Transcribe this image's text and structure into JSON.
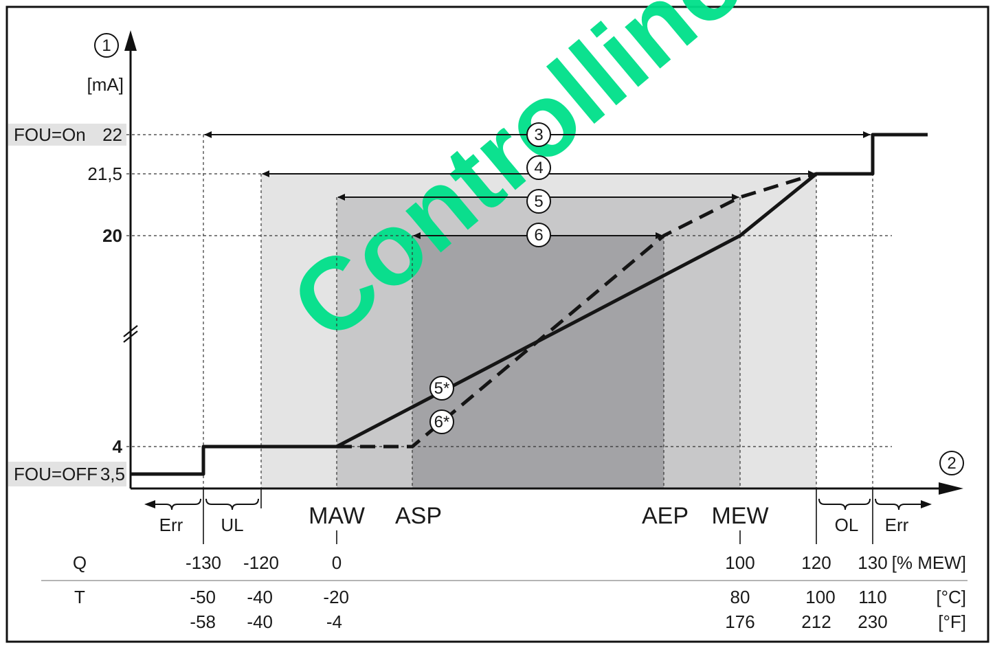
{
  "watermark": {
    "text": "Controllino",
    "color": "#00e08a"
  },
  "y_axis": {
    "marker": "1",
    "unit": "[mA]",
    "ticks": [
      {
        "value_label": "22",
        "tag": "FOU=On"
      },
      {
        "value_label": "21,5"
      },
      {
        "value_label": "20",
        "bold": true
      },
      {
        "value_label": "4",
        "bold": true
      },
      {
        "value_label": "3,5",
        "tag": "FOU=OFF"
      }
    ]
  },
  "x_axis": {
    "marker": "2",
    "points": [
      "MAW",
      "ASP",
      "AEP",
      "MEW"
    ]
  },
  "ranges": [
    {
      "id": "3",
      "label": "3"
    },
    {
      "id": "4",
      "label": "4"
    },
    {
      "id": "5",
      "label": "5"
    },
    {
      "id": "6",
      "label": "6"
    }
  ],
  "curves": [
    {
      "label": "5*",
      "style": "solid"
    },
    {
      "label": "6*",
      "style": "dashed"
    }
  ],
  "zones": {
    "err_left": "Err",
    "ul": "UL",
    "ol": "OL",
    "err_right": "Err"
  },
  "table": {
    "rows": [
      {
        "name": "Q",
        "values": [
          "-130",
          "-120",
          "0",
          "100",
          "120",
          "130"
        ],
        "unit": "[% MEW]"
      },
      {
        "name": "T",
        "values": [
          "-50",
          "-40",
          "-20",
          "80",
          "100",
          "110"
        ],
        "unit": "[°C]"
      },
      {
        "name": "",
        "values": [
          "-58",
          "-40",
          "-4",
          "176",
          "212",
          "230"
        ],
        "unit": "[°F]"
      }
    ]
  },
  "colors": {
    "band_light": "#e4e4e4",
    "band_mid": "#c8c8c9",
    "band_dark": "#a3a3a6",
    "label_bg": "#e2e2e2"
  }
}
